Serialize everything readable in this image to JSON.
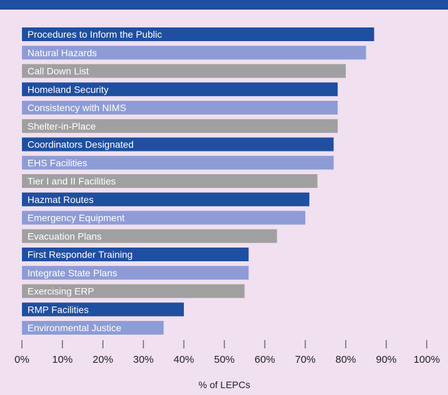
{
  "title": "",
  "chart_data": {
    "type": "bar",
    "orientation": "horizontal",
    "title": "",
    "categories": [
      "Procedures to Inform the Public",
      "Natural Hazards",
      "Call Down List",
      "Homeland Security",
      "Consistency with NIMS",
      "Shelter-in-Place",
      "Coordinators Designated",
      "EHS Facilities",
      "Tier I and II Facilities",
      "Hazmat Routes",
      "Emergency Equipment",
      "Evacuation Plans",
      "First Responder Training",
      "Integrate State Plans",
      "Exercising ERP",
      "RMP Facilities",
      "Environmental Justice"
    ],
    "values": [
      87,
      85,
      80,
      78,
      78,
      78,
      77,
      77,
      73,
      71,
      70,
      63,
      56,
      56,
      55,
      40,
      35
    ],
    "bar_colors": [
      "#1f4fa0",
      "#8e9cd6",
      "#a0a0a0"
    ],
    "xlabel": "% of LEPCs",
    "xlim": [
      0,
      100
    ],
    "xticks": [
      "0%",
      "10%",
      "20%",
      "30%",
      "40%",
      "50%",
      "60%",
      "70%",
      "80%",
      "90%",
      "100%"
    ],
    "grid": false,
    "legend": "none"
  }
}
